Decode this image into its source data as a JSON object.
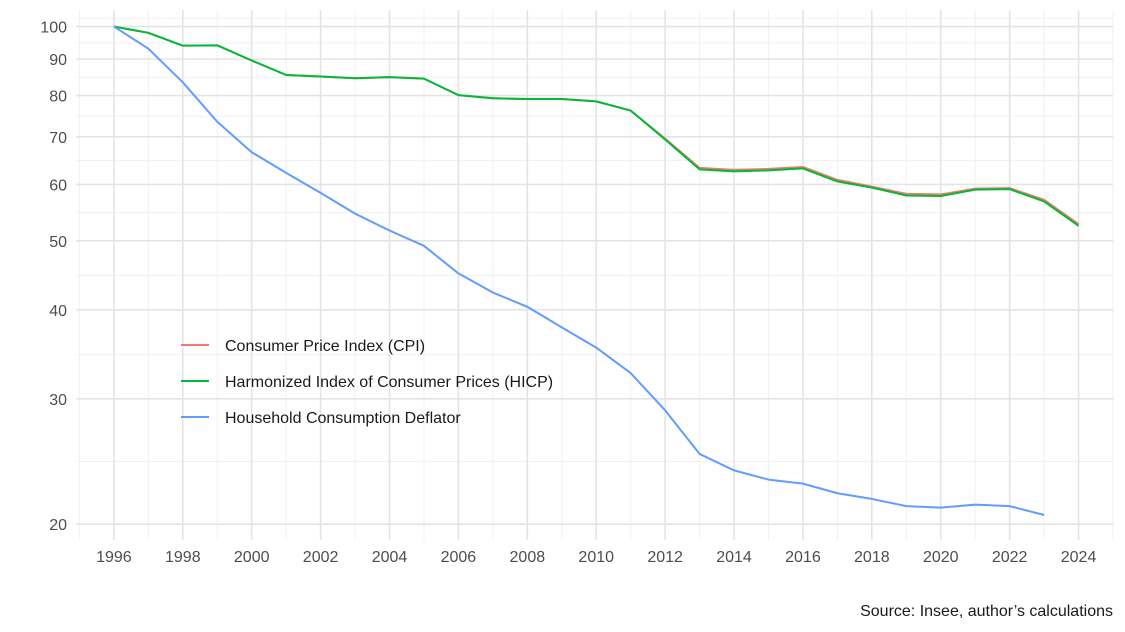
{
  "chart_data": {
    "type": "line",
    "title": "",
    "xlabel": "",
    "ylabel": "",
    "y_scale": "log",
    "xlim": [
      1994.9,
      2025.0
    ],
    "ylim": [
      19.0,
      105.5
    ],
    "grid": true,
    "legend_position": "center-left",
    "caption": "Source: Insee, author’s calculations",
    "x_ticks": [
      1996,
      1998,
      2000,
      2002,
      2004,
      2006,
      2008,
      2010,
      2012,
      2014,
      2016,
      2018,
      2020,
      2022,
      2024
    ],
    "y_ticks": [
      20,
      30,
      40,
      50,
      60,
      70,
      80,
      90,
      100
    ],
    "series": [
      {
        "name": "Consumer Price Index (CPI)",
        "color": "#F8766D",
        "x": [
          1996,
          1997,
          1998,
          1999,
          2000,
          2001,
          2002,
          2003,
          2004,
          2005,
          2006,
          2007,
          2008,
          2009,
          2010,
          2011,
          2012,
          2013,
          2014,
          2015,
          2016,
          2017,
          2018,
          2019,
          2020,
          2021,
          2022,
          2023,
          2024
        ],
        "values": [
          100,
          98,
          94,
          94.1,
          89.6,
          85.5,
          85.1,
          84.6,
          84.9,
          84.5,
          80.1,
          79.3,
          79.1,
          79.1,
          78.5,
          76.2,
          69.6,
          63.3,
          62.9,
          63.1,
          63.5,
          60.9,
          59.6,
          58.2,
          58.1,
          59.2,
          59.3,
          57.1,
          52.8
        ]
      },
      {
        "name": "Harmonized Index of Consumer Prices (HICP)",
        "color": "#00BA38",
        "x": [
          1996,
          1997,
          1998,
          1999,
          2000,
          2001,
          2002,
          2003,
          2004,
          2005,
          2006,
          2007,
          2008,
          2009,
          2010,
          2011,
          2012,
          2013,
          2014,
          2015,
          2016,
          2017,
          2018,
          2019,
          2020,
          2021,
          2022,
          2023,
          2024
        ],
        "values": [
          100,
          98,
          94,
          94.1,
          89.6,
          85.5,
          85.1,
          84.6,
          84.9,
          84.5,
          80.1,
          79.3,
          79.1,
          79.1,
          78.5,
          76.2,
          69.4,
          63,
          62.6,
          62.8,
          63.2,
          60.6,
          59.4,
          57.9,
          57.8,
          59,
          59.1,
          56.8,
          52.5
        ]
      },
      {
        "name": "Household Consumption Deflator",
        "color": "#619CFF",
        "x": [
          1996,
          1997,
          1998,
          1999,
          2000,
          2001,
          2002,
          2003,
          2004,
          2005,
          2006,
          2007,
          2008,
          2009,
          2010,
          2011,
          2012,
          2013,
          2014,
          2015,
          2016,
          2017,
          2018,
          2019,
          2020,
          2021,
          2022,
          2023
        ],
        "values": [
          100,
          93.1,
          83.5,
          73.5,
          66.6,
          62.3,
          58.4,
          54.6,
          51.7,
          49.2,
          45,
          42.3,
          40.4,
          37.8,
          35.4,
          32.6,
          28.9,
          25.1,
          23.8,
          23.1,
          22.8,
          22.1,
          21.7,
          21.2,
          21.1,
          21.3,
          21.2,
          20.6
        ]
      }
    ]
  }
}
